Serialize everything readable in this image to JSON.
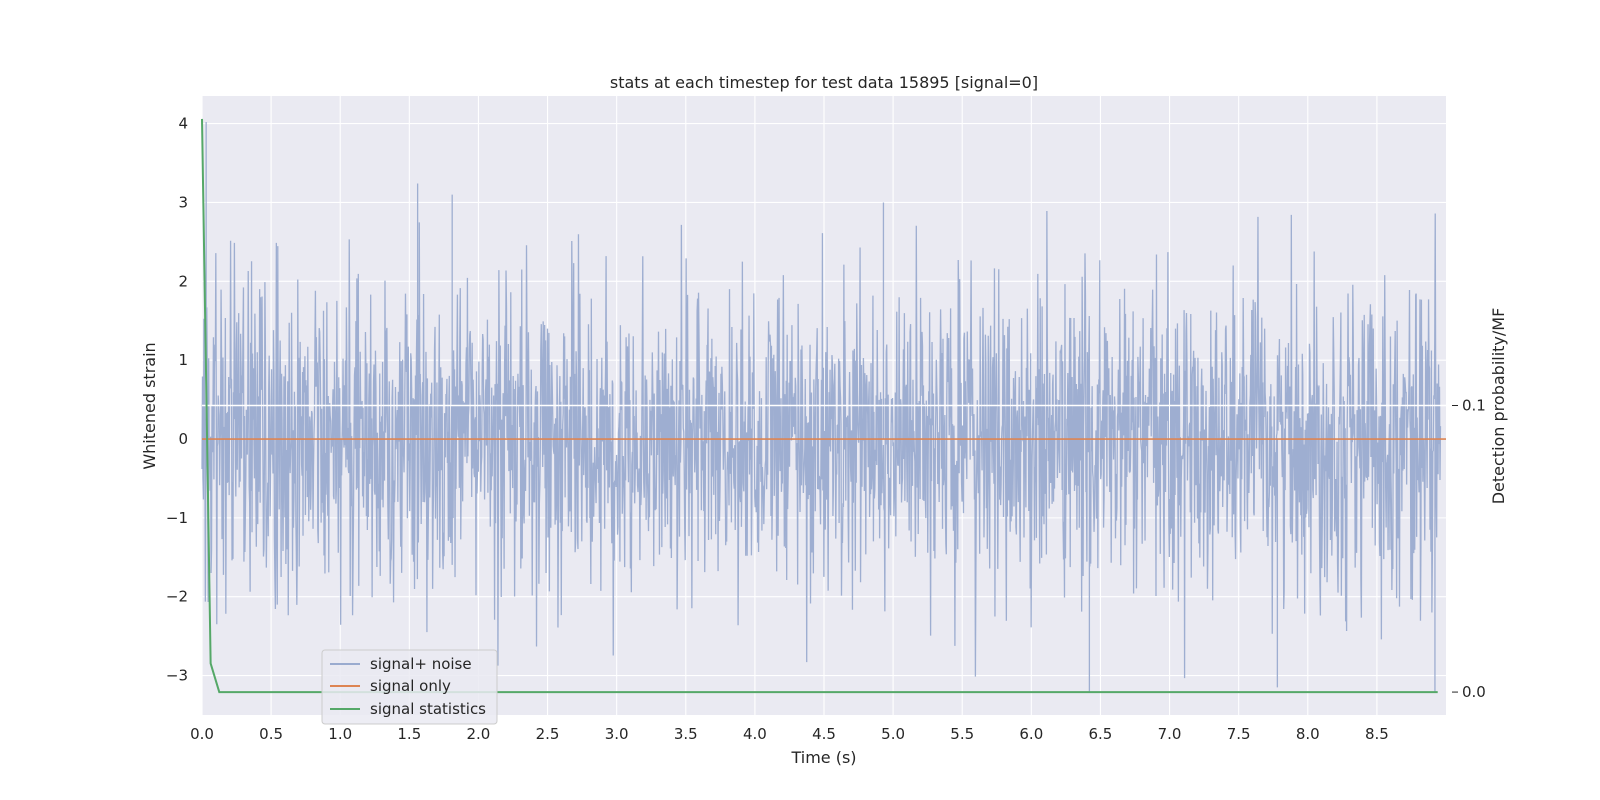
{
  "chart_data": {
    "type": "line",
    "title": "stats at each timestep for test data 15895 [signal=0]",
    "xlabel": "Time (s)",
    "ylabel": "Whitened strain",
    "y2label": "Detection probability/MF",
    "xlim": [
      0.0,
      9.0
    ],
    "ylim": [
      -3.5,
      4.35
    ],
    "y2lim": [
      -0.008,
      0.208
    ],
    "x_ticks": [
      "0.0",
      "0.5",
      "1.0",
      "1.5",
      "2.0",
      "2.5",
      "3.0",
      "3.5",
      "4.0",
      "4.5",
      "5.0",
      "5.5",
      "6.0",
      "6.5",
      "7.0",
      "7.5",
      "8.0",
      "8.5"
    ],
    "y_ticks": [
      "4",
      "3",
      "2",
      "1",
      "0",
      "−1",
      "−2",
      "−3"
    ],
    "y2_ticks": [
      "0.1",
      "0.0"
    ],
    "grid": true,
    "legend_position": "lower-left",
    "series": [
      {
        "name": "signal+ noise",
        "axis": "left",
        "color": "#9aabcf",
        "description": "whitened strain noise, values mostly between -3.2 and 4.0",
        "peaks": [
          {
            "x": 0.03,
            "y": 4.02
          },
          {
            "x": 1.56,
            "y": 3.24
          },
          {
            "x": 1.81,
            "y": 3.1
          },
          {
            "x": 4.93,
            "y": 3.0
          },
          {
            "x": 6.42,
            "y": -3.2
          },
          {
            "x": 7.78,
            "y": -3.15
          },
          {
            "x": 8.92,
            "y": -3.2
          }
        ]
      },
      {
        "name": "signal only",
        "axis": "left",
        "color": "#dd8452",
        "x": [
          0.0,
          9.0
        ],
        "y": [
          0.0,
          0.0
        ]
      },
      {
        "name": "signal statistics",
        "axis": "right",
        "color": "#55a868",
        "x": [
          0.0,
          0.0625,
          0.125,
          0.25,
          1.0,
          2.0,
          3.0,
          4.0,
          5.0,
          6.0,
          7.0,
          8.0,
          8.94
        ],
        "y": [
          0.2,
          0.01,
          0.0,
          0.0,
          0.0,
          0.0,
          0.0,
          0.0,
          0.0,
          0.0,
          0.0,
          0.0,
          0.0
        ]
      }
    ]
  },
  "colors": {
    "plot_background": "#eaeaf2",
    "grid": "#ffffff",
    "text": "#262626"
  }
}
